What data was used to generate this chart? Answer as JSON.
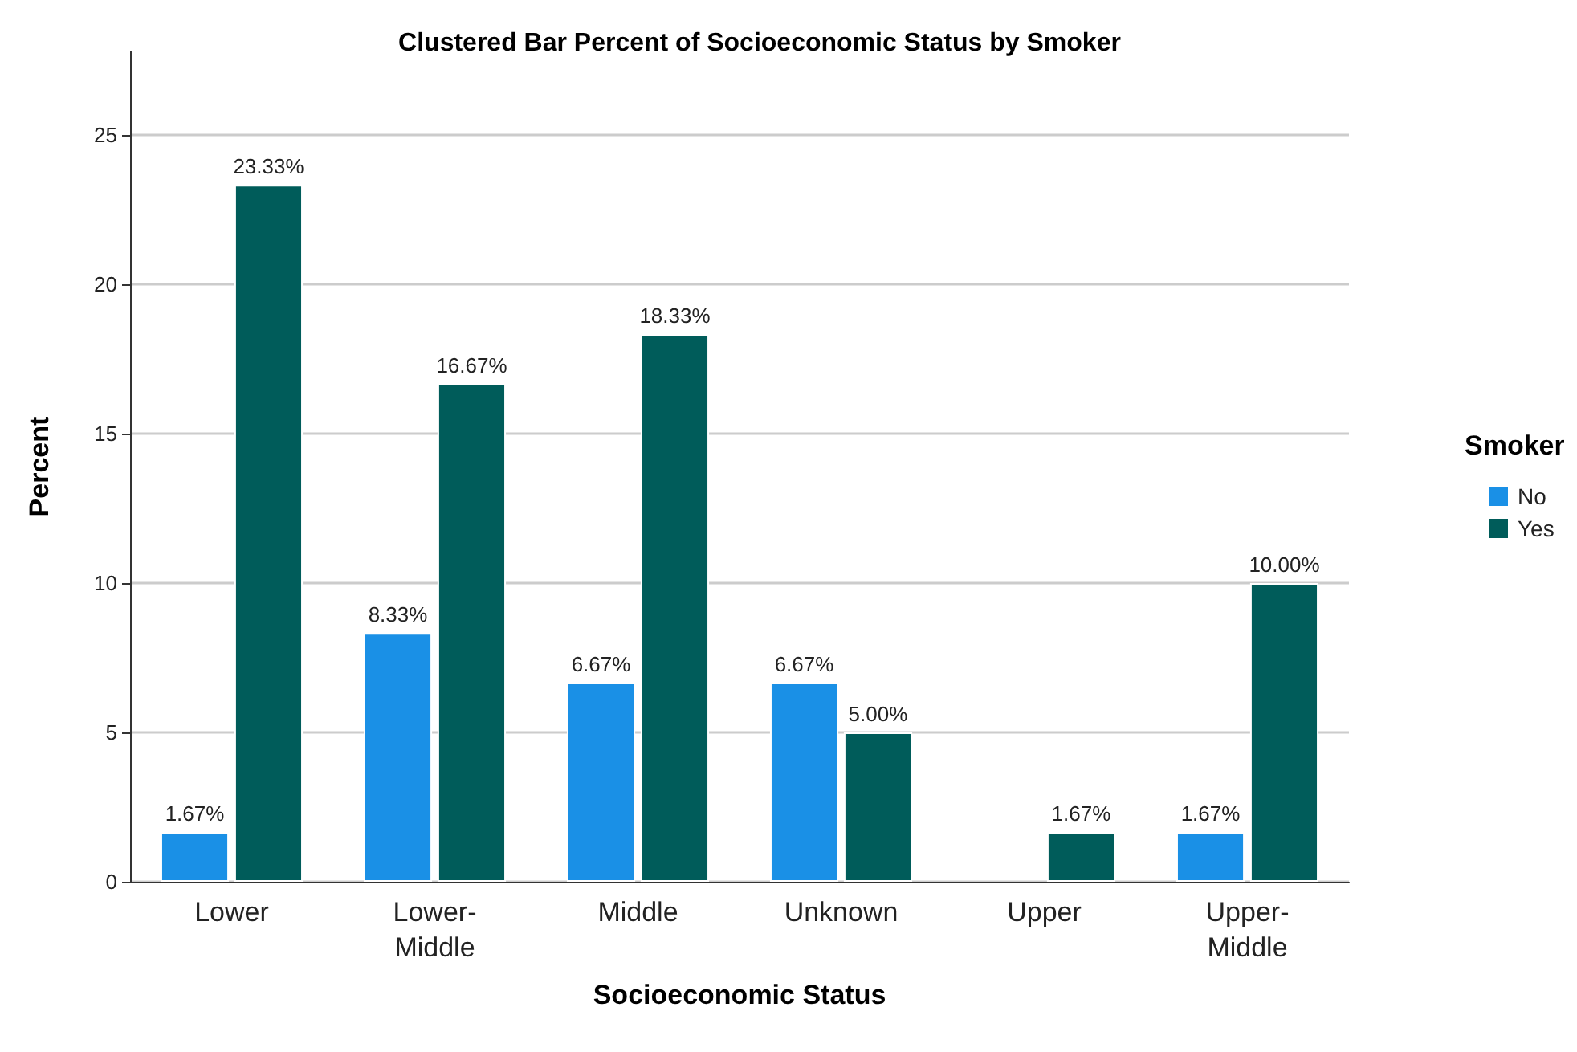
{
  "chart_data": {
    "type": "bar",
    "title": "Clustered Bar Percent of Socioeconomic Status by Smoker",
    "xlabel": "Socioeconomic Status",
    "ylabel": "Percent",
    "legend_title": "Smoker",
    "categories": [
      "Lower",
      "Lower-Middle",
      "Middle",
      "Unknown",
      "Upper",
      "Upper-Middle"
    ],
    "series": [
      {
        "name": "No",
        "color": "#1a90e6",
        "values": [
          1.67,
          8.33,
          6.67,
          6.67,
          null,
          1.67
        ],
        "value_labels": [
          "1.67%",
          "8.33%",
          "6.67%",
          "6.67%",
          null,
          "1.67%"
        ]
      },
      {
        "name": "Yes",
        "color": "#005c5a",
        "values": [
          23.33,
          16.67,
          18.33,
          5.0,
          1.67,
          10.0
        ],
        "value_labels": [
          "23.33%",
          "16.67%",
          "18.33%",
          "5.00%",
          "1.67%",
          "10.00%"
        ]
      }
    ],
    "ylim": [
      0,
      27.8
    ],
    "yticks": [
      0,
      5,
      10,
      15,
      20,
      25
    ],
    "grid": "y",
    "legend": "right"
  }
}
